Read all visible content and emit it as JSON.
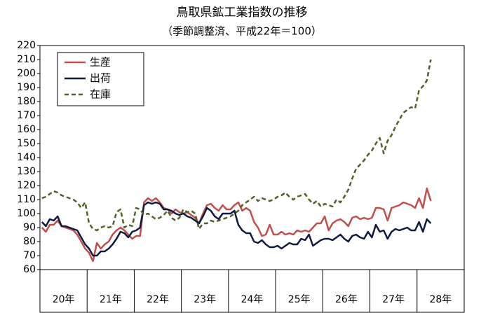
{
  "chart_data": {
    "type": "line",
    "title": "鳥取県鉱工業指数の推移",
    "subtitle": "（季節調整済、平成22年＝100）",
    "categories": [
      "20年",
      null,
      null,
      null,
      null,
      null,
      null,
      null,
      null,
      null,
      null,
      null,
      "21年",
      null,
      null,
      null,
      null,
      null,
      null,
      null,
      null,
      null,
      null,
      null,
      "22年",
      null,
      null,
      null,
      null,
      null,
      null,
      null,
      null,
      null,
      null,
      null,
      "23年",
      null,
      null,
      null,
      null,
      null,
      null,
      null,
      null,
      null,
      null,
      null,
      "24年",
      null,
      null,
      null,
      null,
      null,
      null,
      null,
      null,
      null,
      null,
      null,
      "25年",
      null,
      null,
      null,
      null,
      null,
      null,
      null,
      null,
      null,
      null,
      null,
      "26年",
      null,
      null,
      null,
      null,
      null,
      null,
      null,
      null,
      null,
      null,
      null,
      "27年",
      null,
      null,
      null,
      null,
      null,
      null,
      null,
      null,
      null,
      null,
      null,
      "28年",
      null,
      null,
      null
    ],
    "series": [
      {
        "name": "生産",
        "color": "#c0504d",
        "dash": false,
        "values": [
          90,
          87,
          92,
          92,
          95,
          91,
          90,
          89,
          88,
          85,
          80,
          75,
          72,
          66,
          79,
          75,
          78,
          80,
          85,
          88,
          90,
          88,
          85,
          82,
          84,
          84,
          108,
          111,
          109,
          111,
          108,
          104,
          103,
          100,
          103,
          101,
          100,
          101,
          99,
          97,
          93,
          100,
          106,
          107,
          104,
          102,
          106,
          103,
          103,
          106,
          108,
          102,
          104,
          102,
          94,
          90,
          84,
          85,
          92,
          85,
          85,
          87,
          85,
          86,
          85,
          88,
          87,
          88,
          87,
          90,
          93,
          93,
          98,
          88,
          93,
          95,
          96,
          94,
          91,
          97,
          98,
          96,
          97,
          96,
          97,
          104,
          104,
          103,
          95,
          104,
          105,
          106,
          108,
          107,
          106,
          104,
          111,
          104,
          118,
          109
        ]
      },
      {
        "name": "出荷",
        "color": "#0f1c3f",
        "dash": false,
        "values": [
          94,
          91,
          96,
          95,
          98,
          91,
          91,
          90,
          89,
          88,
          83,
          78,
          75,
          70,
          70,
          73,
          73,
          75,
          78,
          82,
          87,
          86,
          83,
          87,
          88,
          90,
          106,
          108,
          107,
          108,
          107,
          103,
          103,
          102,
          100,
          99,
          100,
          98,
          97,
          95,
          93,
          98,
          104,
          102,
          98,
          96,
          100,
          100,
          100,
          102,
          92,
          88,
          86,
          86,
          80,
          79,
          81,
          78,
          76,
          76,
          77,
          75,
          77,
          79,
          78,
          78,
          82,
          81,
          85,
          77,
          79,
          81,
          82,
          82,
          81,
          83,
          85,
          82,
          80,
          84,
          85,
          83,
          82,
          87,
          83,
          92,
          87,
          88,
          82,
          87,
          89,
          88,
          89,
          90,
          88,
          88,
          94,
          87,
          96,
          93
        ]
      },
      {
        "name": "在庫",
        "color": "#4f6228",
        "dash": true,
        "values": [
          111,
          112,
          114,
          116,
          115,
          113,
          112,
          111,
          110,
          108,
          104,
          108,
          93,
          89,
          88,
          90,
          91,
          90,
          91,
          101,
          103,
          90,
          92,
          91,
          104,
          103,
          99,
          100,
          98,
          96,
          97,
          99,
          102,
          97,
          95,
          97,
          103,
          101,
          102,
          100,
          89,
          93,
          93,
          95,
          94,
          95,
          96,
          97,
          98,
          100,
          102,
          106,
          108,
          110,
          112,
          109,
          111,
          110,
          109,
          110,
          112,
          113,
          115,
          112,
          110,
          112,
          113,
          114,
          110,
          107,
          109,
          105,
          107,
          106,
          105,
          110,
          108,
          112,
          117,
          125,
          132,
          135,
          138,
          142,
          145,
          150,
          154,
          143,
          152,
          156,
          162,
          167,
          172,
          174,
          176,
          175,
          188,
          191,
          195,
          210
        ]
      }
    ],
    "ylim": [
      60,
      220
    ],
    "yticks": [
      60,
      70,
      80,
      90,
      100,
      110,
      120,
      130,
      140,
      150,
      160,
      170,
      180,
      190,
      200,
      210,
      220
    ],
    "grid": false,
    "legend": "upper left"
  }
}
